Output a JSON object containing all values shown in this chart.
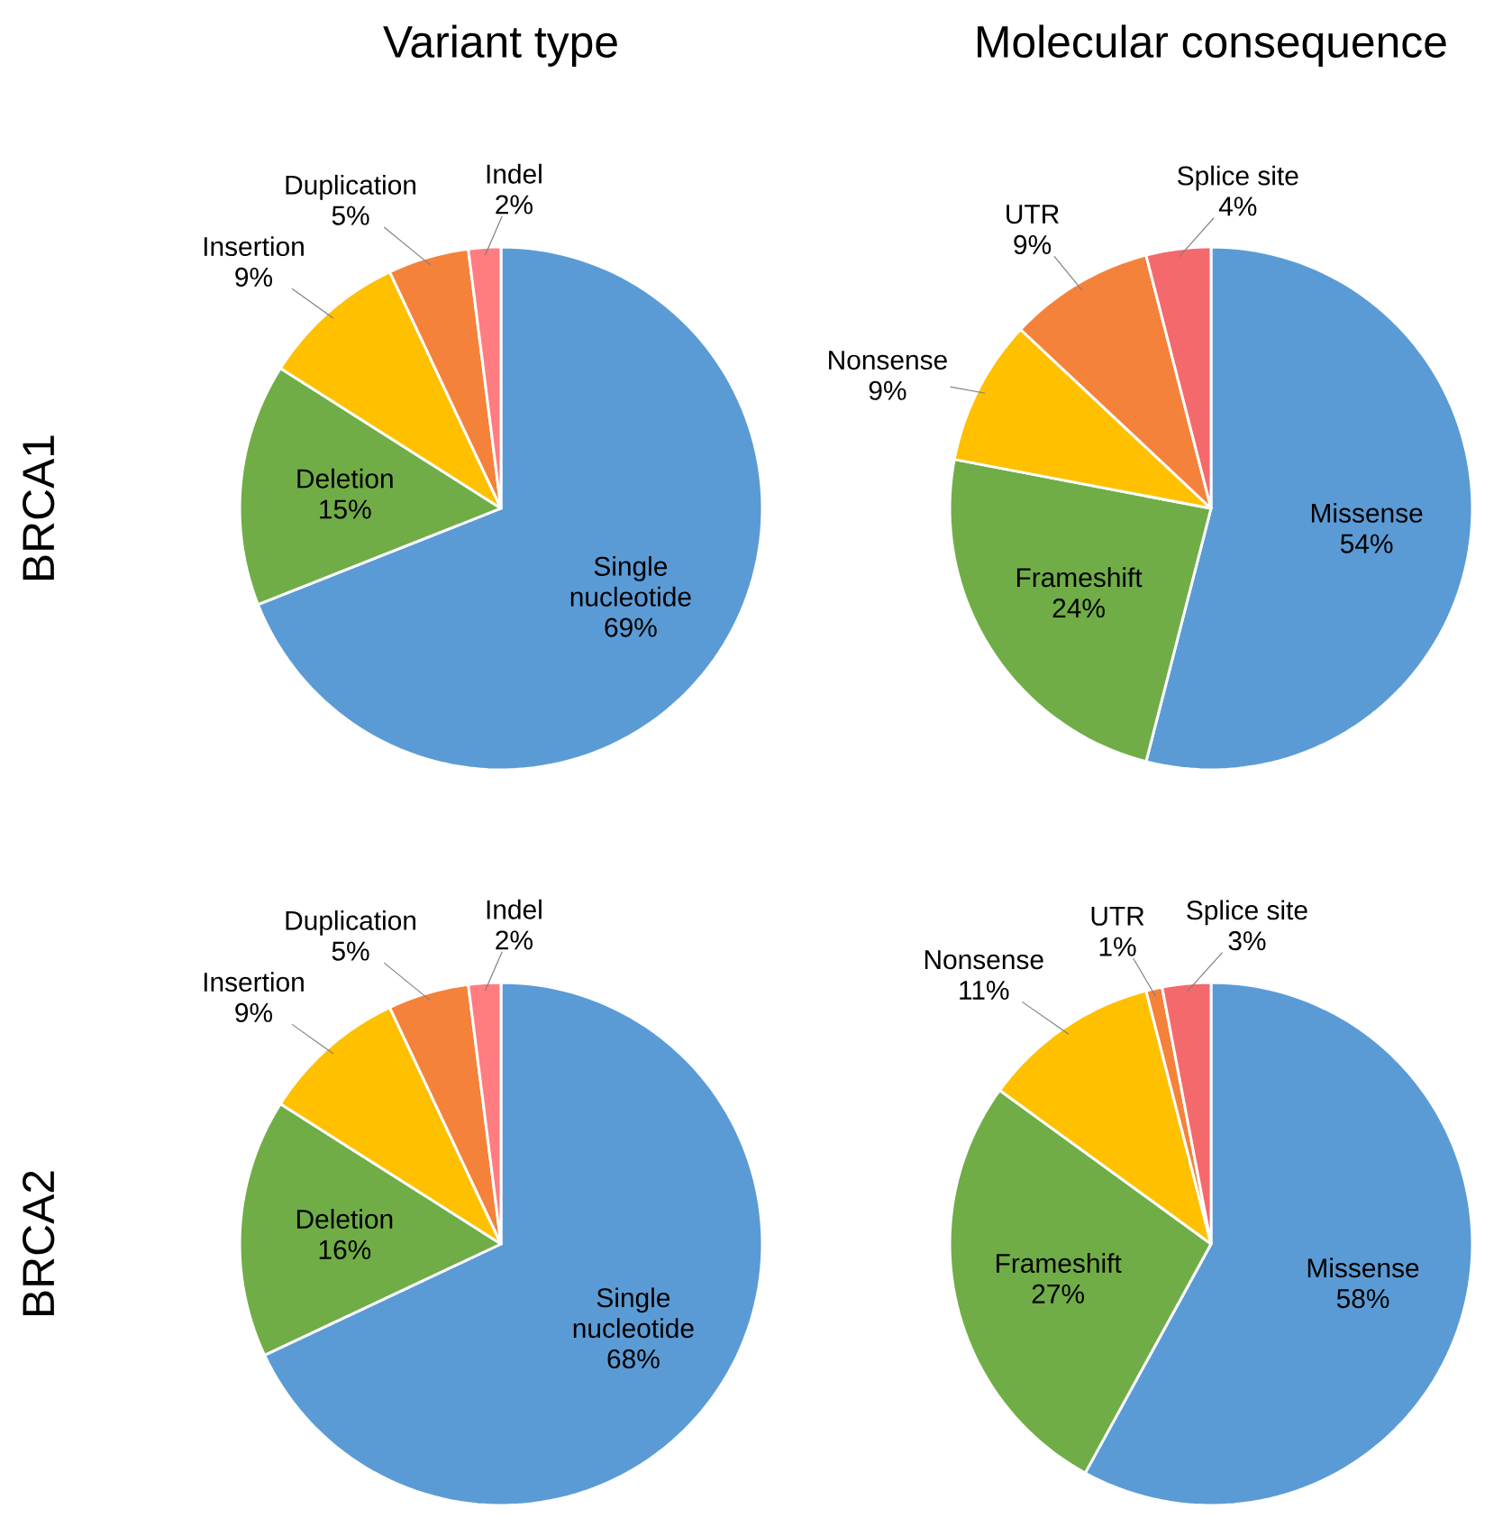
{
  "chart_data": [
    {
      "type": "pie",
      "title": "Variant type",
      "ylabel": "BRCA1",
      "categories": [
        "Single nucleotide",
        "Deletion",
        "Insertion",
        "Duplication",
        "Indel"
      ],
      "values": [
        69,
        15,
        9,
        5,
        2
      ],
      "value_labels": [
        "69%",
        "15%",
        "9%",
        "5%",
        "2%"
      ],
      "colors": [
        "#5b9bd5",
        "#70ad47",
        "#ffc000",
        "#f4823a",
        "#ff7c80"
      ]
    },
    {
      "type": "pie",
      "title": "Molecular consequence",
      "categories": [
        "Missense",
        "Frameshift",
        "Nonsense",
        "UTR",
        "Splice site"
      ],
      "values": [
        54,
        24,
        9,
        9,
        4
      ],
      "value_labels": [
        "54%",
        "24%",
        "9%",
        "9%",
        "4%"
      ],
      "colors": [
        "#5b9bd5",
        "#70ad47",
        "#ffc000",
        "#f4823a",
        "#f4696b"
      ]
    },
    {
      "type": "pie",
      "ylabel": "BRCA2",
      "categories": [
        "Single nucleotide",
        "Deletion",
        "Insertion",
        "Duplication",
        "Indel"
      ],
      "values": [
        68,
        16,
        9,
        5,
        2
      ],
      "value_labels": [
        "68%",
        "16%",
        "9%",
        "5%",
        "2%"
      ],
      "colors": [
        "#5b9bd5",
        "#70ad47",
        "#ffc000",
        "#f4823a",
        "#ff7c80"
      ]
    },
    {
      "type": "pie",
      "categories": [
        "Missense",
        "Frameshift",
        "Nonsense",
        "UTR",
        "Splice site"
      ],
      "values": [
        58,
        27,
        11,
        1,
        3
      ],
      "value_labels": [
        "58%",
        "27%",
        "11%",
        "1%",
        "3%"
      ],
      "colors": [
        "#5b9bd5",
        "#70ad47",
        "#ffc000",
        "#f4823a",
        "#f4696b"
      ]
    }
  ]
}
